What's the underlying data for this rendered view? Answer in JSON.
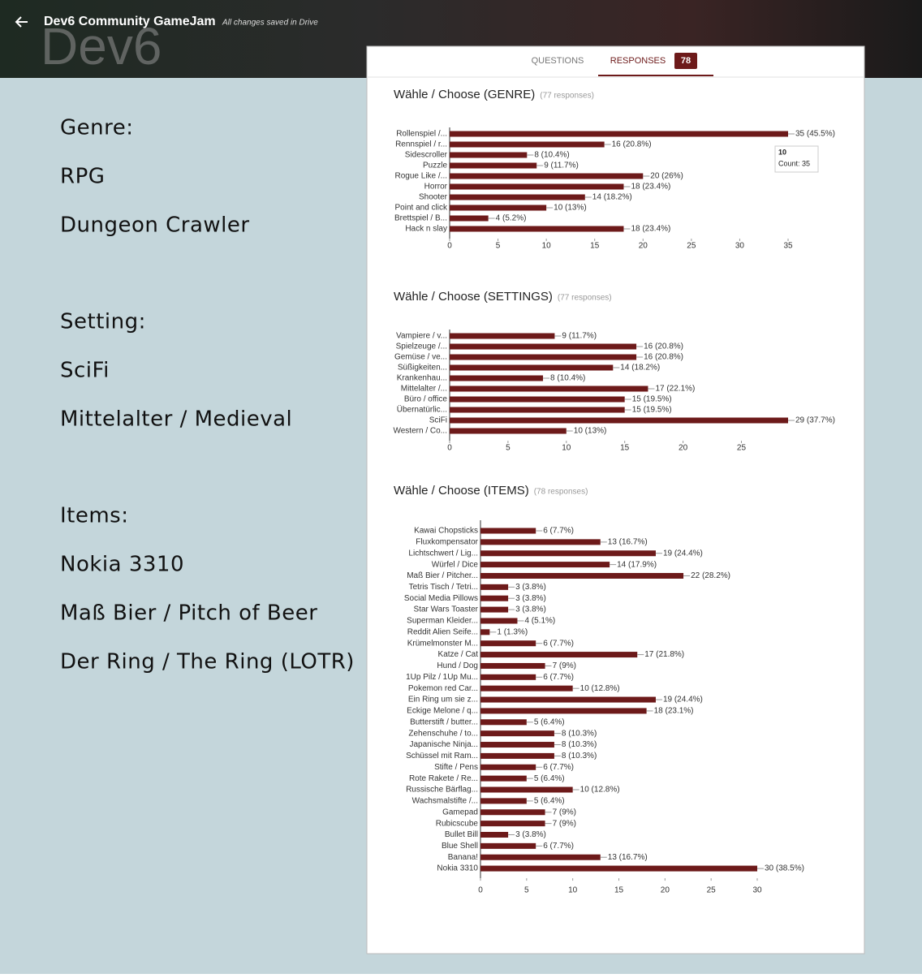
{
  "header": {
    "title": "Dev6 Community GameJam",
    "status": "All changes saved in Drive",
    "logo": "Dev6"
  },
  "tabs": {
    "questions": "QUESTIONS",
    "responses": "RESPONSES",
    "count": "78"
  },
  "left_text": [
    "Genre:",
    "RPG",
    "Dungeon Crawler",
    "Setting:",
    "SciFi",
    "Mittelalter / Medieval",
    "Items:",
    "Nokia 3310",
    "Maß Bier / Pitch of Beer",
    "Der Ring / The Ring (LOTR)"
  ],
  "chart_data": [
    {
      "type": "bar",
      "orientation": "horizontal",
      "title": "Wähle / Choose (GENRE)",
      "subtitle": "(77 responses)",
      "color": "#6d1a1a",
      "categories": [
        "Rollenspiel /...",
        "Rennspiel / r...",
        "Sidescroller",
        "Puzzle",
        "Rogue Like /...",
        "Horror",
        "Shooter",
        "Point and click",
        "Brettspiel / B...",
        "Hack n slay"
      ],
      "values": [
        35,
        16,
        8,
        9,
        20,
        18,
        14,
        10,
        4,
        18
      ],
      "value_labels": [
        "35 (45.5%)",
        "16 (20.8%)",
        "8 (10.4%)",
        "9 (11.7%)",
        "20 (26%)",
        "18 (23.4%)",
        "14 (18.2%)",
        "10 (13%)",
        "4 (5.2%)",
        "18 (23.4%)"
      ],
      "xlim": [
        0,
        35
      ],
      "xticks": [
        0,
        5,
        10,
        15,
        20,
        25,
        30,
        35
      ],
      "tooltip": {
        "title": "10",
        "text": "Count: 35"
      }
    },
    {
      "type": "bar",
      "orientation": "horizontal",
      "title": "Wähle / Choose (SETTINGS)",
      "subtitle": "(77 responses)",
      "color": "#6d1a1a",
      "categories": [
        "Vampiere / v...",
        "Spielzeuge /...",
        "Gemüse / ve...",
        "Süßigkeiten...",
        "Krankenhau...",
        "Mittelalter /...",
        "Büro / office",
        "Übernatürlic...",
        "SciFi",
        "Western / Co..."
      ],
      "values": [
        9,
        16,
        16,
        14,
        8,
        17,
        15,
        15,
        29,
        10
      ],
      "value_labels": [
        "9 (11.7%)",
        "16 (20.8%)",
        "16 (20.8%)",
        "14 (18.2%)",
        "8 (10.4%)",
        "17 (22.1%)",
        "15 (19.5%)",
        "15 (19.5%)",
        "29 (37.7%)",
        "10 (13%)"
      ],
      "xlim": [
        0,
        29
      ],
      "xticks": [
        0,
        5,
        10,
        15,
        20,
        25
      ]
    },
    {
      "type": "bar",
      "orientation": "horizontal",
      "title": "Wähle / Choose (ITEMS)",
      "subtitle": "(78 responses)",
      "color": "#6d1a1a",
      "categories": [
        "Kawai Chopsticks",
        "Fluxkompensator",
        "Lichtschwert / Lig...",
        "Würfel / Dice",
        "Maß Bier / Pitcher...",
        "Tetris Tisch / Tetri...",
        "Social Media Pillows",
        "Star Wars Toaster",
        "Superman Kleider...",
        "Reddit Alien Seife...",
        "Krümelmonster M...",
        "Katze / Cat",
        "Hund / Dog",
        "1Up Pilz / 1Up Mu...",
        "Pokemon red Car...",
        "Ein Ring um sie z...",
        "Eckige Melone / q...",
        "Butterstift / butter...",
        "Zehenschuhe / to...",
        "Japanische Ninja...",
        "Schüssel mit Ram...",
        "Stifte / Pens",
        "Rote Rakete / Re...",
        "Russische Bärflag...",
        "Wachsmalstifte /...",
        "Gamepad",
        "Rubicscube",
        "Bullet Bill",
        "Blue Shell",
        "Banana!",
        "Nokia 3310"
      ],
      "values": [
        6,
        13,
        19,
        14,
        22,
        3,
        3,
        3,
        4,
        1,
        6,
        17,
        7,
        6,
        10,
        19,
        18,
        5,
        8,
        8,
        8,
        6,
        5,
        10,
        5,
        7,
        7,
        3,
        6,
        13,
        30
      ],
      "value_labels": [
        "6 (7.7%)",
        "13 (16.7%)",
        "19 (24.4%)",
        "14 (17.9%)",
        "22 (28.2%)",
        "3 (3.8%)",
        "3 (3.8%)",
        "3 (3.8%)",
        "4 (5.1%)",
        "1 (1.3%)",
        "6 (7.7%)",
        "17 (21.8%)",
        "7 (9%)",
        "6 (7.7%)",
        "10 (12.8%)",
        "19 (24.4%)",
        "18 (23.1%)",
        "5 (6.4%)",
        "8 (10.3%)",
        "8 (10.3%)",
        "8 (10.3%)",
        "6 (7.7%)",
        "5 (6.4%)",
        "10 (12.8%)",
        "5 (6.4%)",
        "7 (9%)",
        "7 (9%)",
        "3 (3.8%)",
        "6 (7.7%)",
        "13 (16.7%)",
        "30 (38.5%)"
      ],
      "xlim": [
        0,
        30
      ],
      "xticks": [
        0,
        5,
        10,
        15,
        20,
        25,
        30
      ]
    }
  ]
}
